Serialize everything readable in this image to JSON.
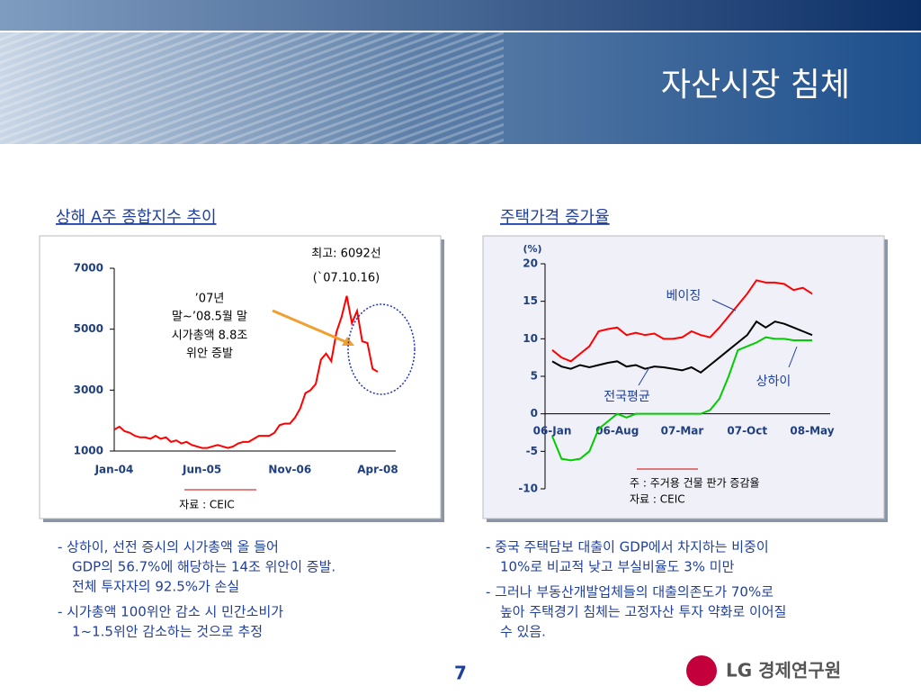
{
  "title": "자산시장 침체",
  "chart_data": [
    {
      "type": "line",
      "title": "상해 A주 종합지수 추이",
      "categories": [
        "Jan-04",
        null,
        null,
        null,
        null,
        null,
        null,
        null,
        null,
        null,
        null,
        null,
        null,
        null,
        null,
        null,
        null,
        "Jun-05",
        null,
        null,
        null,
        null,
        null,
        null,
        null,
        null,
        null,
        null,
        null,
        null,
        null,
        null,
        null,
        null,
        "Nov-06",
        null,
        null,
        null,
        null,
        null,
        null,
        null,
        null,
        null,
        null,
        null,
        null,
        null,
        null,
        null,
        null,
        "Apr-08"
      ],
      "values": [
        1700,
        1800,
        1650,
        1600,
        1500,
        1450,
        1450,
        1400,
        1500,
        1400,
        1450,
        1300,
        1350,
        1250,
        1300,
        1200,
        1150,
        1100,
        1100,
        1150,
        1200,
        1150,
        1100,
        1150,
        1250,
        1300,
        1300,
        1400,
        1500,
        1500,
        1500,
        1600,
        1850,
        1900,
        1900,
        2100,
        2400,
        2900,
        3000,
        3200,
        4000,
        4200,
        3950,
        4900,
        5400,
        6092,
        5200,
        5600,
        4600,
        4550,
        3700,
        3600
      ],
      "color": "#ff0000",
      "ylim": [
        1000,
        7000
      ],
      "yticks": [
        1000,
        3000,
        5000,
        7000
      ],
      "annotations": [
        "최고: 6092선",
        "(`07.10.16)",
        "’07년",
        "말~’08.5월 말",
        "시가총액 8.8조",
        "위안 증발"
      ],
      "source": "자료 : CEIC"
    },
    {
      "type": "line",
      "title": "주택가격 증가율",
      "y_unit": "(%)",
      "categories": [
        "06-Jan",
        null,
        null,
        null,
        null,
        null,
        null,
        "06-Aug",
        null,
        null,
        null,
        null,
        null,
        null,
        "07-Mar",
        null,
        null,
        null,
        null,
        null,
        null,
        "07-Oct",
        null,
        null,
        null,
        null,
        null,
        null,
        "08-May"
      ],
      "series": [
        {
          "name": "베이징",
          "color": "#ff0000",
          "values": [
            8.5,
            7.5,
            7,
            8,
            9,
            11,
            11.3,
            11.5,
            10.5,
            10.8,
            10.5,
            10.7,
            10,
            10,
            10.2,
            11,
            10.5,
            10.2,
            11.5,
            13,
            14.5,
            16,
            17.8,
            17.5,
            17.5,
            17.3,
            16.5,
            16.8,
            16
          ]
        },
        {
          "name": "전국평균",
          "color": "#000000",
          "values": [
            7,
            6.3,
            6,
            6.5,
            6.2,
            6.5,
            6.8,
            7,
            6.3,
            6.5,
            6,
            6.3,
            6.2,
            6,
            5.8,
            6.2,
            5.5,
            6.5,
            7.5,
            8.5,
            9.5,
            10.5,
            12.3,
            11.5,
            12.3,
            12,
            11.5,
            11,
            10.5
          ]
        },
        {
          "name": "상하이",
          "color": "#00cc00",
          "values": [
            -3,
            -6,
            -6.2,
            -6,
            -5,
            -2,
            -1,
            0,
            -0.5,
            0,
            0,
            0,
            0,
            0,
            0,
            0,
            0,
            0.5,
            2,
            5,
            8.5,
            9,
            9.5,
            10.2,
            10,
            10,
            9.8,
            9.8,
            9.8
          ]
        }
      ],
      "ylim": [
        -10,
        20
      ],
      "yticks": [
        -10,
        -5,
        0,
        5,
        10,
        15,
        20
      ],
      "note": "주 : 주거용 건물 판가 증감율",
      "source": "자료 : CEIC"
    }
  ],
  "bullets_left": [
    [
      "- 상하이, 선전 증시의 시가총액 올 들어",
      "GDP의 56.7%에 해당하는 14조 위안이 증발.",
      "전체 투자자의 92.5%가 손실"
    ],
    [
      "- 시가총액 100위안 감소 시 민간소비가",
      "1~1.5위안 감소하는 것으로 추정"
    ]
  ],
  "bullets_right": [
    [
      "- 중국 주택담보 대출이 GDP에서 차지하는 비중이",
      "10%로 비교적 낮고 부실비율도 3% 미만"
    ],
    [
      "- 그러나 부동산개발업체들의 대출의존도가 70%로",
      "높아 주택경기 침체는 고정자산 투자 약화로 이어질",
      "수 있음."
    ]
  ],
  "page_number": "7",
  "logo": "LG 경제연구원"
}
